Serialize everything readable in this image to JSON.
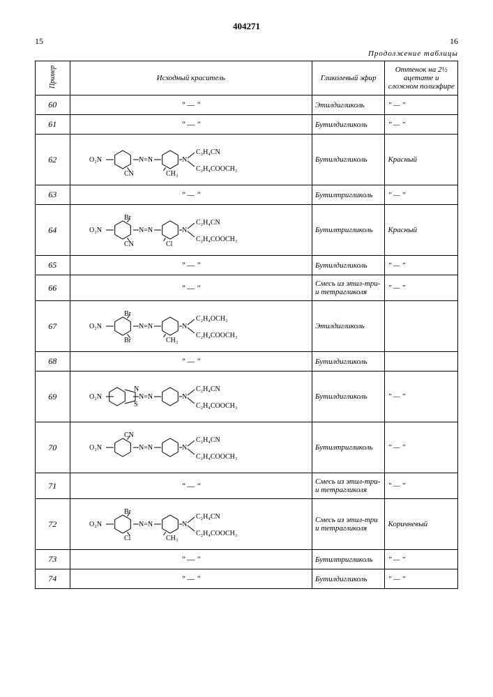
{
  "doc_number": "404271",
  "page_left": "15",
  "page_right": "16",
  "continuation": "Продолжение таблицы",
  "headers": {
    "num": "Пример",
    "dye": "Исходный краситель",
    "glycol": "Гликолевый эфир",
    "shade": "Оттенок на 2½ ацетате и сложном полиэфире"
  },
  "rows": [
    {
      "n": "60",
      "dye": "ditto",
      "glycol": "Этилдигликоль",
      "shade": "ditto"
    },
    {
      "n": "61",
      "dye": "ditto",
      "glycol": "Бутилдигликоль",
      "shade": "ditto"
    },
    {
      "n": "62",
      "dye": "chem1",
      "glycol": "Бутилдигликоль",
      "shade": "Красный"
    },
    {
      "n": "63",
      "dye": "ditto",
      "glycol": "Бутилтригликоль",
      "shade": "ditto"
    },
    {
      "n": "64",
      "dye": "chem2",
      "glycol": "Бутилтригликоль",
      "shade": "Красный"
    },
    {
      "n": "65",
      "dye": "ditto",
      "glycol": "Бутилдигликоль",
      "shade": "ditto"
    },
    {
      "n": "66",
      "dye": "ditto",
      "glycol": "Смесь из этил-три-и тетрагликоля",
      "shade": "ditto"
    },
    {
      "n": "67",
      "dye": "chem3",
      "glycol": "Этилдигликоль",
      "shade": ""
    },
    {
      "n": "68",
      "dye": "ditto",
      "glycol": "Бутилдигликоль",
      "shade": ""
    },
    {
      "n": "69",
      "dye": "chem4",
      "glycol": "Бутилдигликоль",
      "shade": "ditto"
    },
    {
      "n": "70",
      "dye": "chem5",
      "glycol": "Бутилтригликоль",
      "shade": "ditto"
    },
    {
      "n": "71",
      "dye": "ditto",
      "glycol": "Смесь из этил-три- и тетрагликоля",
      "shade": "ditto"
    },
    {
      "n": "72",
      "dye": "chem6",
      "glycol": "Смесь из этил-три и тетрагликоля",
      "shade": "Коричневый"
    },
    {
      "n": "73",
      "dye": "ditto",
      "glycol": "Бутилтригликоль",
      "shade": "ditto"
    },
    {
      "n": "74",
      "dye": "ditto",
      "glycol": "Бутилдигликоль",
      "shade": "ditto"
    }
  ],
  "ditto_mark": "\" — \"",
  "chem_structures": {
    "chem1": {
      "left_sub": [
        "O₂N",
        "",
        "CN"
      ],
      "mid_sub": [
        "",
        "CH₃",
        ""
      ],
      "n_top": "C₂H₄CN",
      "n_bot": "C₂H₄COOCH₃"
    },
    "chem2": {
      "left_sub": [
        "O₂N",
        "Br",
        "CN"
      ],
      "mid_sub": [
        "",
        "Cl",
        ""
      ],
      "n_top": "C₂H₄CN",
      "n_bot": "C₂H₄COOCH₃"
    },
    "chem3": {
      "left_sub": [
        "O₂N",
        "Br",
        "Br"
      ],
      "mid_sub": [
        "",
        "CH₃",
        ""
      ],
      "n_top": "C₂H₄OCH₃",
      "n_bot": "C₂H₄COOCH₃"
    },
    "chem4": {
      "hetero": true,
      "left_sub": [
        "O₂N",
        "",
        ""
      ],
      "mid_sub": [
        "",
        "",
        ""
      ],
      "n_top": "C₂H₄CN",
      "n_bot": "C₂H₄COOCH₃"
    },
    "chem5": {
      "left_sub": [
        "O₂N",
        "CN",
        ""
      ],
      "mid_sub": [
        "",
        "",
        ""
      ],
      "n_top": "C₂H₄CN",
      "n_bot": "C₂H₄COOCH₃"
    },
    "chem6": {
      "left_sub": [
        "O₂N",
        "Br",
        "Cl"
      ],
      "mid_sub": [
        "",
        "CH₃",
        ""
      ],
      "n_top": "C₂H₄CN",
      "n_bot": "C₂H₄COOCH₃"
    }
  }
}
